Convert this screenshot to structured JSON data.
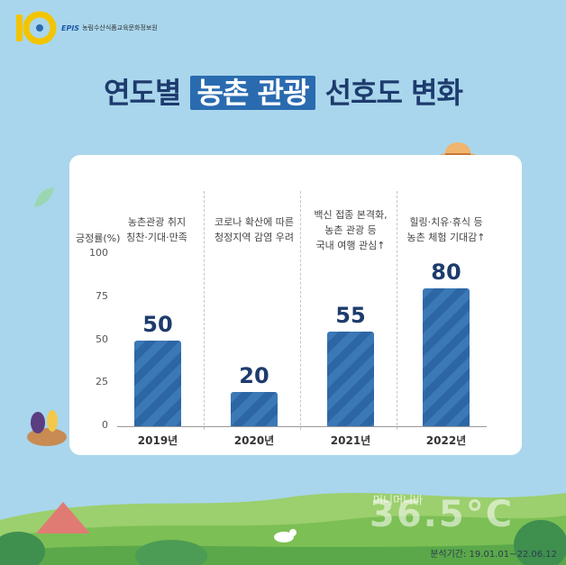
{
  "header": {
    "logo_brand": "EPIS",
    "logo_org": "농림수산식품교육문화정보원"
  },
  "title": {
    "before": "연도별 ",
    "highlight": "농촌 관광",
    "after": " 선호도 변화"
  },
  "notes": [
    "농촌관광 취지\n칭찬·기대·만족",
    "코로나 확산에 따른\n청정지역 감염 우려",
    "백신 접종 본격화,\n농촌 관광 등\n국내 여행 관심↑",
    "힐링·치유·휴식 등\n농촌 체험 기대감↑"
  ],
  "chart_data": {
    "type": "bar",
    "categories": [
      "2019년",
      "2020년",
      "2021년",
      "2022년"
    ],
    "values": [
      50,
      20,
      55,
      80
    ],
    "title": "연도별 농촌 관광 선호도 변화",
    "xlabel": "",
    "ylabel": "긍정률(%)",
    "ylim": [
      0,
      100
    ],
    "yticks": [
      0,
      25,
      50,
      75,
      100
    ],
    "bar_color": "#2d66a4",
    "grid": false
  },
  "footer": {
    "watermark": "36.5°C",
    "watermark_small": "머니머니바",
    "period": "분석기간: 19.01.01~22.06.12"
  },
  "colors": {
    "sky": "#a9d6ec",
    "title": "#1d3b6d",
    "highlight": "#2a6bb0"
  }
}
